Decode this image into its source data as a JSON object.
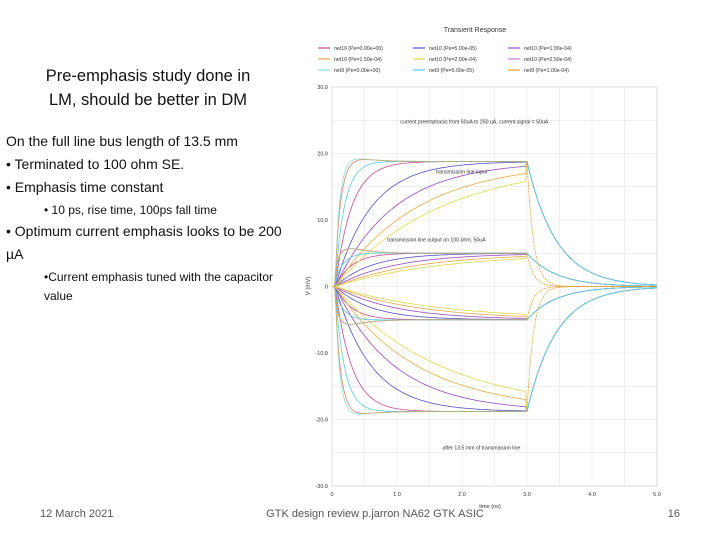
{
  "slide": {
    "title_line1": "Pre-emphasis study done in",
    "title_line2": "LM, should be better in DM",
    "bullet1": "On the full line bus length of 13.5 mm",
    "bullet2": "• Terminated to 100 ohm SE.",
    "bullet3": "• Emphasis time constant",
    "sub1": "• 10 ps, rise time, 100ps fall time",
    "bullet4": "• Optimum current emphasis looks to be 200 µA",
    "sub2": "•Current emphasis tuned with the capacitor value",
    "footer_date": "12 March 2021",
    "footer_center": "GTK design review  p.jarron  NA62 GTK ASIC",
    "footer_page": "16"
  },
  "chart_data": {
    "type": "line",
    "title": "Transient Response",
    "xlabel": "time (ns)",
    "ylabel": "V (mV)",
    "xlim": [
      0,
      5.0
    ],
    "ylim": [
      -30.0,
      30.0
    ],
    "xticks": [
      "0",
      "1.0",
      "2.0",
      "3.0",
      "4.0",
      "5.0"
    ],
    "yticks": [
      "30.0",
      "20.0",
      "10.0",
      "0",
      "-10.0",
      "-20.0",
      "-30.0"
    ],
    "grid": true,
    "legend_position": "top",
    "legend": [
      {
        "label": "net10 (Pe=0.00e+00)",
        "color": "#c84a9a"
      },
      {
        "label": "net10 (Pe=5.00e-05)",
        "color": "#5252c8"
      },
      {
        "label": "net10 (Pe=1.00e-04)",
        "color": "#9a4ac8"
      },
      {
        "label": "net10 (Pe=1.50e-04)",
        "color": "#e6aa46"
      },
      {
        "label": "net10 (Pe=2.00e-04)",
        "color": "#ddd84e"
      },
      {
        "label": "net10 (Pe=2.50e-04)",
        "color": "#c87ad8"
      },
      {
        "label": "net9 (Pe=0.00e+00)",
        "color": "#8adede"
      },
      {
        "label": "net9 (Pe=5.00e-05)",
        "color": "#5ac8e6"
      },
      {
        "label": "net9 (Pe=1.00e-04)",
        "color": "#e6a032"
      }
    ],
    "annotations": [
      {
        "text": "current preemphasis from 50uA to 250 uA, current signal = 50uA",
        "x": 1.05,
        "y": 24.5
      },
      {
        "text": "transmission line input",
        "x": 1.6,
        "y": 17.0
      },
      {
        "text": "transmission line output on 100 ohm, 50uA",
        "x": 0.85,
        "y": 6.8
      },
      {
        "text": "after 13.5 mm of transmission line",
        "x": 1.7,
        "y": -24.5
      }
    ],
    "series": [
      {
        "name": "net10 (Pe=0.00e+00)",
        "color": "#c84a9a",
        "sign": 1,
        "base": 18.8,
        "peak": 0,
        "tr": 0.25,
        "fall": "slow"
      },
      {
        "name": "net10 (Pe=5.00e-05)",
        "color": "#5252c8",
        "sign": 1,
        "base": 18.8,
        "peak": 0,
        "tr": 0.55,
        "fall": "slow"
      },
      {
        "name": "net10 (Pe=1.00e-04)",
        "color": "#9a4ac8",
        "sign": 1,
        "base": 18.8,
        "peak": 0,
        "tr": 0.9,
        "fall": "slow"
      },
      {
        "name": "net10 (Pe=1.50e-04)",
        "color": "#e6aa46",
        "sign": 1,
        "base": 18.8,
        "peak": 0,
        "tr": 1.25,
        "fall": "slow"
      },
      {
        "name": "net10 (Pe=2.00e-04)",
        "color": "#ddd84e",
        "sign": 1,
        "base": 18.8,
        "peak": 0,
        "tr": 1.6,
        "fall": "slow"
      },
      {
        "name": "net10 (Pe=2.50e-04)",
        "color": "#c87ad8",
        "sign": 1,
        "base": 18.8,
        "peak": 3.0,
        "tr": 0.1,
        "fall": "slow"
      },
      {
        "name": "net9 (Pe=0.00e+00)",
        "color": "#8adede",
        "sign": 1,
        "base": 18.8,
        "peak": 2.5,
        "tr": 0.08,
        "fall": "slow"
      },
      {
        "name": "net9 (Pe=5.00e-05)",
        "color": "#5ac8e6",
        "sign": 1,
        "base": 18.8,
        "peak": 1.0,
        "tr": 0.15,
        "fall": "slow"
      },
      {
        "name": "net9 (Pe=1.00e-04)",
        "color": "#e6a032",
        "sign": -1,
        "base": 18.8,
        "peak": 3.0,
        "tr": 0.1,
        "fall": "fast"
      }
    ]
  }
}
